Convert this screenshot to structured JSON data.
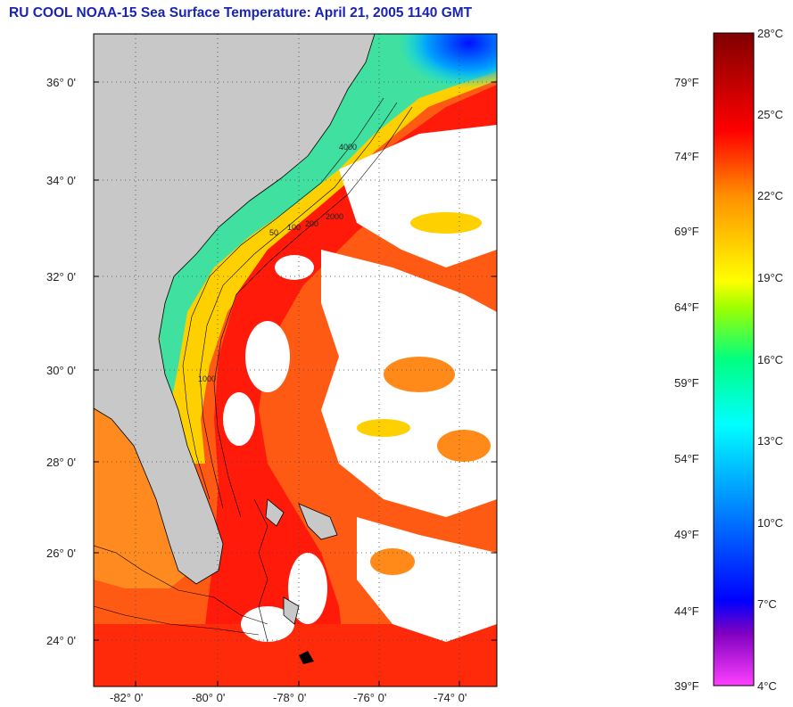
{
  "title": "RU COOL  NOAA-15  Sea Surface Temperature:  April 21, 2005 1140 GMT",
  "map": {
    "lat_labels": [
      "36° 0'",
      "34° 0'",
      "32° 0'",
      "30° 0'",
      "28° 0'",
      "26° 0'",
      "24° 0'"
    ],
    "lon_labels": [
      "-82° 0'",
      "-80° 0'",
      "-78° 0'",
      "-76° 0'",
      "-74° 0'"
    ],
    "contour_labels": [
      "50",
      "100",
      "200",
      "1000",
      "2000",
      "4000"
    ],
    "colors": {
      "land": "#c8c8c8",
      "cloud": "#ffffff",
      "coast": "#000000"
    }
  },
  "colorbar": {
    "fahrenheit_labels": [
      "79°F",
      "74°F",
      "69°F",
      "64°F",
      "59°F",
      "54°F",
      "49°F",
      "44°F",
      "39°F"
    ],
    "celsius_labels": [
      "28°C",
      "25°C",
      "22°C",
      "19°C",
      "16°C",
      "13°C",
      "10°C",
      "7°C",
      "4°C"
    ],
    "celsius_range": [
      4,
      28
    ],
    "stops": [
      "#ff33ff",
      "#8000c0",
      "#0000ff",
      "#00aaff",
      "#00ffff",
      "#00ff80",
      "#a0ff00",
      "#ffff00",
      "#ff8000",
      "#ff0000",
      "#b00000",
      "#800000"
    ]
  }
}
